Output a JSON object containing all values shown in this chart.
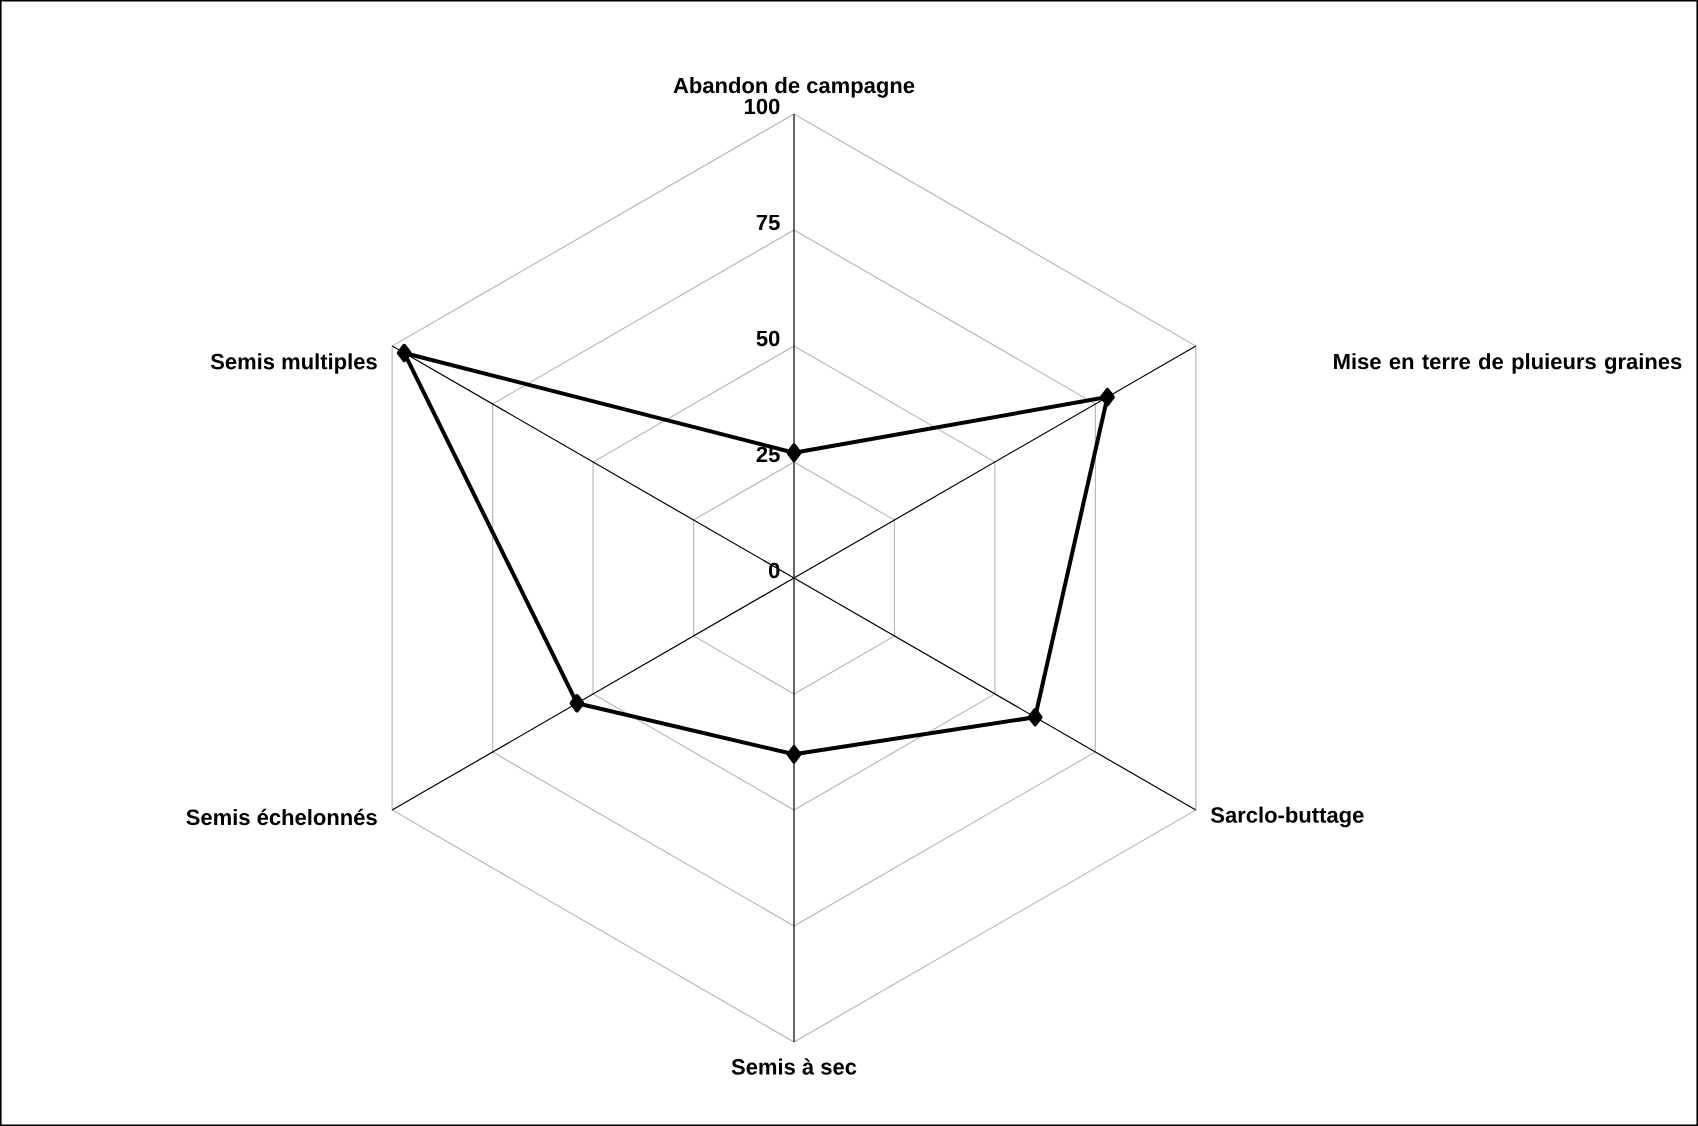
{
  "chart_data": {
    "type": "radar",
    "categories": [
      "Abandon de campagne",
      "Mise en terre de pluieurs graines",
      "Sarclo-buttage",
      "Semis à sec",
      "Semis échelonnés",
      "Semis multiples"
    ],
    "series": [
      {
        "color": "#000000",
        "values": [
          27,
          78,
          60,
          38,
          54,
          97
        ]
      }
    ],
    "ylim": [
      0,
      100
    ],
    "yticks": [
      0,
      25,
      50,
      75,
      100
    ],
    "grid": true,
    "marker": "diamond",
    "line_style": "solid"
  }
}
